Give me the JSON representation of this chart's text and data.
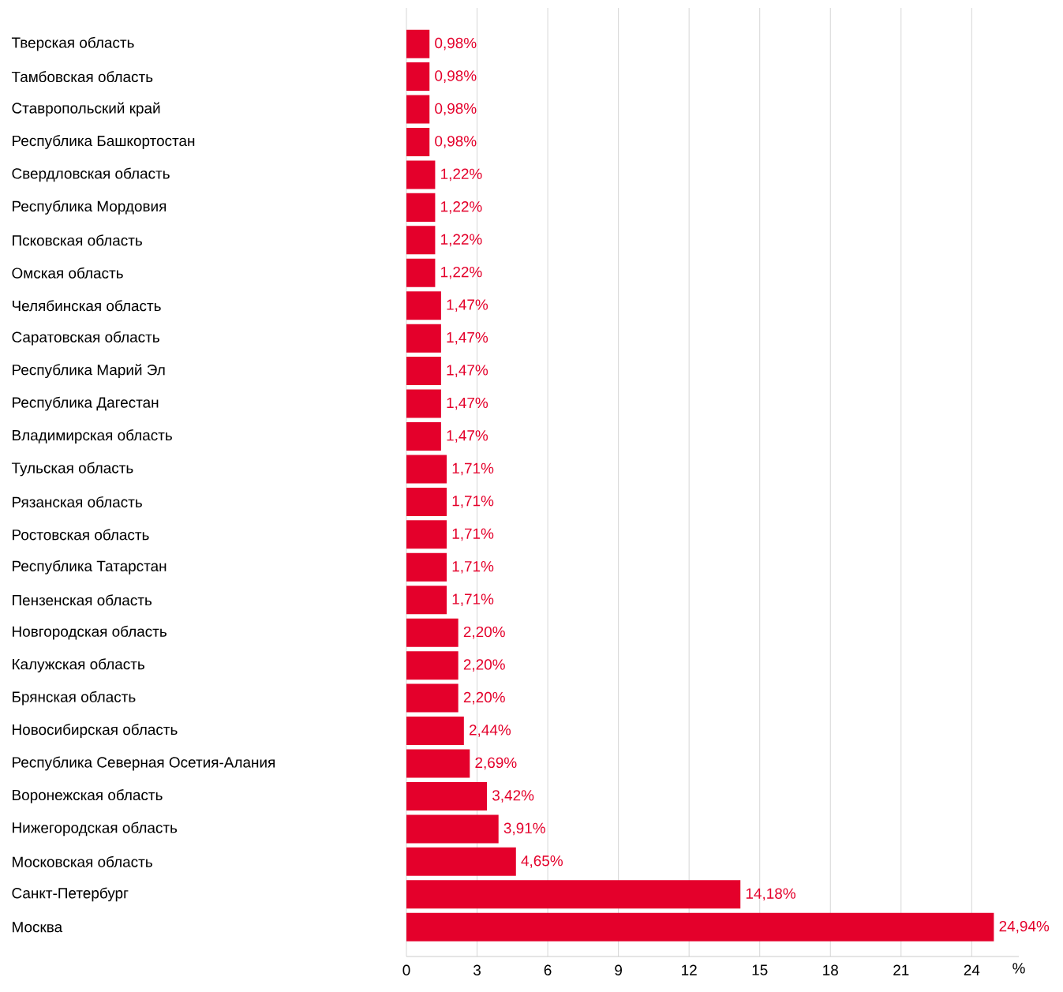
{
  "chart_data": {
    "type": "bar",
    "orientation": "horizontal",
    "xlabel": "%",
    "categories": [
      "Тверская область",
      "Тамбовская область",
      "Ставропольский край",
      "Республика Башкортостан",
      "Свердловская область",
      "Республика Мордовия",
      "Псковская область",
      "Омская область",
      "Челябинская область",
      "Саратовская область",
      "Республика Марий Эл",
      "Республика Дагестан",
      "Владимирская область",
      "Тульская область",
      "Рязанская область",
      "Ростовская область",
      "Республика Татарстан",
      "Пензенская область",
      "Новгородская область",
      "Калужская область",
      "Брянская область",
      "Новосибирская область",
      "Республика Северная Осетия-Алания",
      "Воронежская область",
      "Нижегородская область",
      "Московская область",
      "Санкт-Петербург",
      "Москва"
    ],
    "values": [
      0.98,
      0.98,
      0.98,
      0.98,
      1.22,
      1.22,
      1.22,
      1.22,
      1.47,
      1.47,
      1.47,
      1.47,
      1.47,
      1.71,
      1.71,
      1.71,
      1.71,
      1.71,
      2.2,
      2.2,
      2.2,
      2.44,
      2.69,
      3.42,
      3.91,
      4.65,
      14.18,
      24.94
    ],
    "value_labels": [
      "0,98%",
      "0,98%",
      "0,98%",
      "0,98%",
      "1,22%",
      "1,22%",
      "1,22%",
      "1,22%",
      "1,47%",
      "1,47%",
      "1,47%",
      "1,47%",
      "1,47%",
      "1,71%",
      "1,71%",
      "1,71%",
      "1,71%",
      "1,71%",
      "2,20%",
      "2,20%",
      "2,20%",
      "2,44%",
      "2,69%",
      "3,42%",
      "3,91%",
      "4,65%",
      "14,18%",
      "24,94%"
    ],
    "color": "#e4002b",
    "xlim": [
      0,
      26
    ],
    "xticks": [
      0,
      3,
      6,
      9,
      12,
      15,
      18,
      21,
      24
    ],
    "grid": "x"
  }
}
